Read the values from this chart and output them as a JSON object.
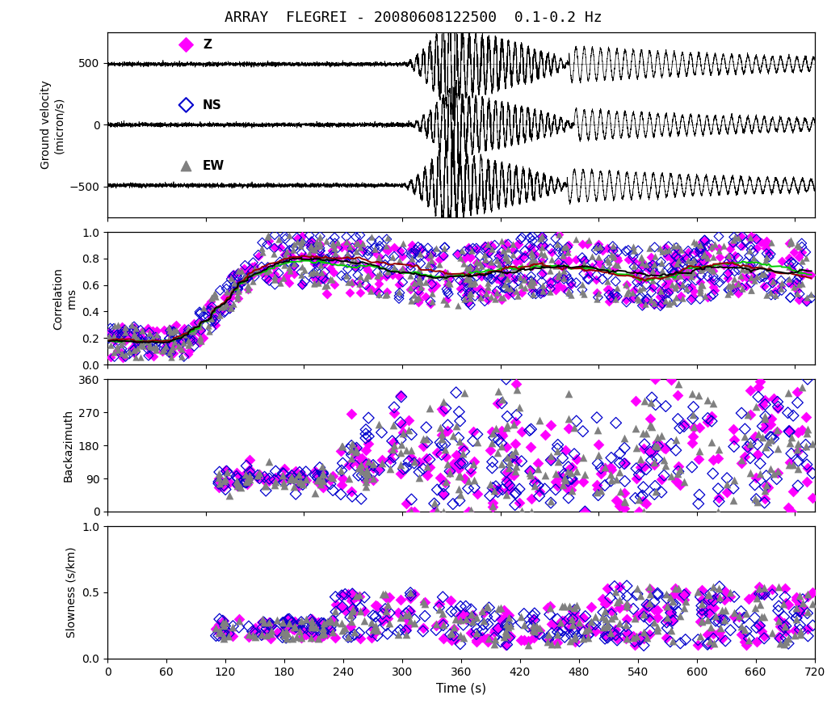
{
  "title": "ARRAY  FLEGREI - 20080608122500  0.1-0.2 Hz",
  "xlabel": "Time (s)",
  "xlim": [
    0,
    720
  ],
  "xticks": [
    0,
    60,
    120,
    180,
    240,
    300,
    360,
    420,
    480,
    540,
    600,
    660,
    720
  ],
  "panel1": {
    "ylabel": "Ground velocity\n(micron/s)",
    "ylim": [
      -750,
      750
    ],
    "yticks": [
      -500,
      0,
      500
    ]
  },
  "panel2": {
    "ylabel": "Correlation\nrms",
    "ylim": [
      0,
      1
    ],
    "yticks": [
      0,
      0.2,
      0.4,
      0.6,
      0.8,
      1
    ]
  },
  "panel3": {
    "ylabel": "Backazimuth",
    "ylim": [
      0,
      360
    ],
    "yticks": [
      0,
      90,
      180,
      270,
      360
    ]
  },
  "panel4": {
    "ylabel": "Slowness (s/km)",
    "ylim": [
      0,
      1
    ],
    "yticks": [
      0,
      0.5,
      1
    ]
  },
  "colors": {
    "magenta": "#FF00FF",
    "blue": "#0000CD",
    "gray": "#808080",
    "green": "#00CC00",
    "black": "#000000",
    "darkred": "#990000"
  }
}
